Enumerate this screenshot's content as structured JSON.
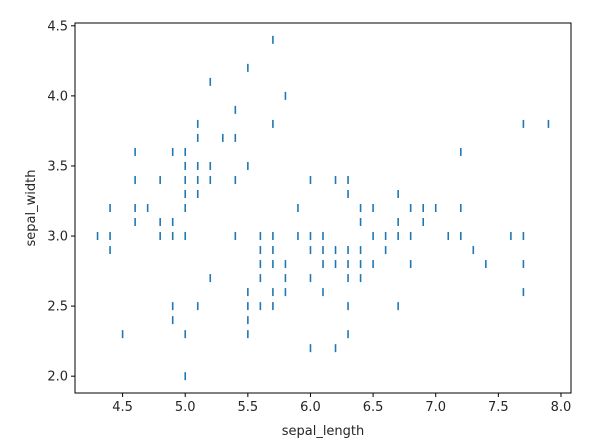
{
  "chart_data": {
    "type": "scatter",
    "marker": "vertical-tick",
    "xlabel": "sepal_length",
    "ylabel": "sepal_width",
    "xlim": [
      4.12,
      8.08
    ],
    "ylim": [
      1.88,
      4.52
    ],
    "x_ticks": [
      4.5,
      5.0,
      5.5,
      6.0,
      6.5,
      7.0,
      7.5,
      8.0
    ],
    "x_tick_labels": [
      "4.5",
      "5.0",
      "5.5",
      "6.0",
      "6.5",
      "7.0",
      "7.5",
      "8.0"
    ],
    "y_ticks": [
      2.0,
      2.5,
      3.0,
      3.5,
      4.0,
      4.5
    ],
    "y_tick_labels": [
      "2.0",
      "2.5",
      "3.0",
      "3.5",
      "4.0",
      "4.5"
    ],
    "grid": false,
    "color": "#1f77b4",
    "points": [
      [
        4.3,
        3.0
      ],
      [
        4.4,
        2.9
      ],
      [
        4.4,
        3.0
      ],
      [
        4.4,
        3.2
      ],
      [
        4.5,
        2.3
      ],
      [
        4.6,
        3.1
      ],
      [
        4.6,
        3.2
      ],
      [
        4.6,
        3.4
      ],
      [
        4.6,
        3.6
      ],
      [
        4.7,
        3.2
      ],
      [
        4.8,
        3.0
      ],
      [
        4.8,
        3.1
      ],
      [
        4.8,
        3.4
      ],
      [
        4.9,
        2.4
      ],
      [
        4.9,
        2.5
      ],
      [
        4.9,
        3.0
      ],
      [
        4.9,
        3.1
      ],
      [
        4.9,
        3.6
      ],
      [
        5.0,
        2.0
      ],
      [
        5.0,
        2.3
      ],
      [
        5.0,
        3.0
      ],
      [
        5.0,
        3.2
      ],
      [
        5.0,
        3.3
      ],
      [
        5.0,
        3.4
      ],
      [
        5.0,
        3.5
      ],
      [
        5.0,
        3.6
      ],
      [
        5.1,
        2.5
      ],
      [
        5.1,
        3.3
      ],
      [
        5.1,
        3.4
      ],
      [
        5.1,
        3.5
      ],
      [
        5.1,
        3.7
      ],
      [
        5.1,
        3.8
      ],
      [
        5.2,
        2.7
      ],
      [
        5.2,
        3.4
      ],
      [
        5.2,
        3.5
      ],
      [
        5.2,
        4.1
      ],
      [
        5.3,
        3.7
      ],
      [
        5.4,
        3.0
      ],
      [
        5.4,
        3.4
      ],
      [
        5.4,
        3.7
      ],
      [
        5.4,
        3.9
      ],
      [
        5.5,
        2.3
      ],
      [
        5.5,
        2.4
      ],
      [
        5.5,
        2.5
      ],
      [
        5.5,
        2.6
      ],
      [
        5.5,
        3.5
      ],
      [
        5.5,
        4.2
      ],
      [
        5.6,
        2.5
      ],
      [
        5.6,
        2.7
      ],
      [
        5.6,
        2.8
      ],
      [
        5.6,
        2.9
      ],
      [
        5.6,
        3.0
      ],
      [
        5.7,
        2.5
      ],
      [
        5.7,
        2.6
      ],
      [
        5.7,
        2.8
      ],
      [
        5.7,
        2.9
      ],
      [
        5.7,
        3.0
      ],
      [
        5.7,
        3.8
      ],
      [
        5.7,
        4.4
      ],
      [
        5.8,
        2.6
      ],
      [
        5.8,
        2.7
      ],
      [
        5.8,
        2.8
      ],
      [
        5.8,
        4.0
      ],
      [
        5.9,
        3.0
      ],
      [
        5.9,
        3.2
      ],
      [
        6.0,
        2.2
      ],
      [
        6.0,
        2.7
      ],
      [
        6.0,
        2.9
      ],
      [
        6.0,
        3.0
      ],
      [
        6.0,
        3.4
      ],
      [
        6.1,
        2.6
      ],
      [
        6.1,
        2.8
      ],
      [
        6.1,
        2.9
      ],
      [
        6.1,
        3.0
      ],
      [
        6.2,
        2.2
      ],
      [
        6.2,
        2.8
      ],
      [
        6.2,
        2.9
      ],
      [
        6.2,
        3.4
      ],
      [
        6.3,
        2.3
      ],
      [
        6.3,
        2.5
      ],
      [
        6.3,
        2.7
      ],
      [
        6.3,
        2.8
      ],
      [
        6.3,
        2.9
      ],
      [
        6.3,
        3.3
      ],
      [
        6.3,
        3.4
      ],
      [
        6.4,
        2.7
      ],
      [
        6.4,
        2.8
      ],
      [
        6.4,
        2.9
      ],
      [
        6.4,
        3.1
      ],
      [
        6.4,
        3.2
      ],
      [
        6.5,
        2.8
      ],
      [
        6.5,
        3.0
      ],
      [
        6.5,
        3.2
      ],
      [
        6.6,
        2.9
      ],
      [
        6.6,
        3.0
      ],
      [
        6.7,
        2.5
      ],
      [
        6.7,
        3.0
      ],
      [
        6.7,
        3.1
      ],
      [
        6.7,
        3.3
      ],
      [
        6.8,
        2.8
      ],
      [
        6.8,
        3.0
      ],
      [
        6.8,
        3.2
      ],
      [
        6.9,
        3.1
      ],
      [
        6.9,
        3.2
      ],
      [
        7.0,
        3.2
      ],
      [
        7.1,
        3.0
      ],
      [
        7.2,
        3.0
      ],
      [
        7.2,
        3.2
      ],
      [
        7.2,
        3.6
      ],
      [
        7.3,
        2.9
      ],
      [
        7.4,
        2.8
      ],
      [
        7.6,
        3.0
      ],
      [
        7.7,
        2.6
      ],
      [
        7.7,
        2.8
      ],
      [
        7.7,
        3.0
      ],
      [
        7.7,
        3.8
      ],
      [
        7.9,
        3.8
      ]
    ]
  }
}
